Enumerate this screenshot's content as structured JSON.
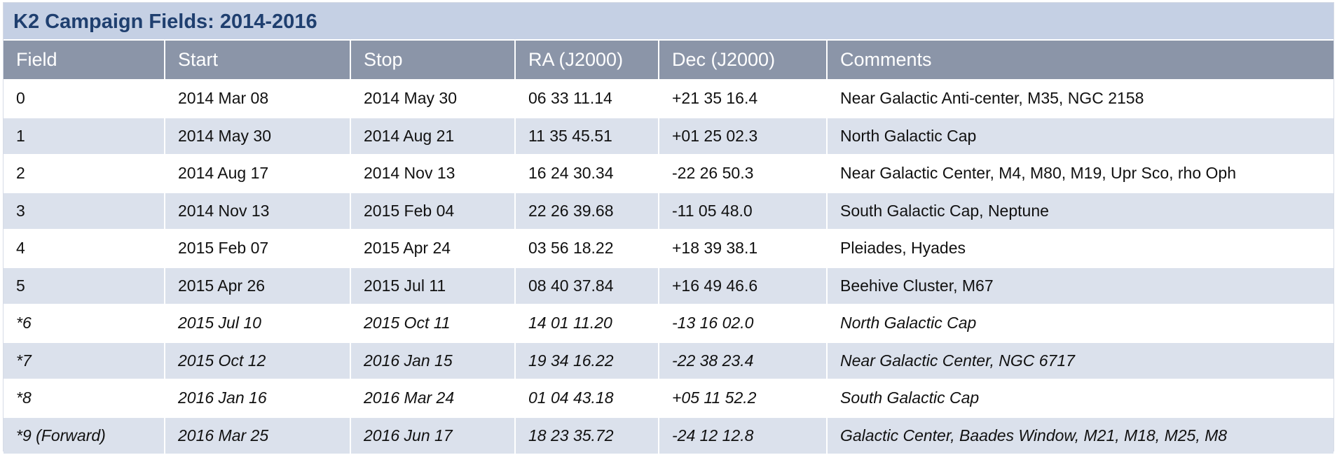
{
  "title": "K2 Campaign Fields: 2014-2016",
  "columns": [
    "Field",
    "Start",
    "Stop",
    "RA (J2000)",
    "Dec (J2000)",
    "Comments"
  ],
  "rows": [
    {
      "field": "0",
      "start": "2014 Mar 08",
      "stop": "2014 May 30",
      "ra": "06 33 11.14",
      "dec": "+21 35 16.4",
      "comments": "Near Galactic Anti-center, M35, NGC 2158",
      "projected": false
    },
    {
      "field": "1",
      "start": "2014 May 30",
      "stop": "2014 Aug 21",
      "ra": "11 35 45.51",
      "dec": "+01 25 02.3",
      "comments": "North Galactic Cap",
      "projected": false
    },
    {
      "field": "2",
      "start": "2014 Aug 17",
      "stop": "2014 Nov 13",
      "ra": "16 24 30.34",
      "dec": "-22 26 50.3",
      "comments": "Near Galactic Center, M4, M80, M19, Upr Sco, rho Oph",
      "projected": false
    },
    {
      "field": "3",
      "start": "2014 Nov 13",
      "stop": "2015 Feb 04",
      "ra": "22 26 39.68",
      "dec": "-11 05 48.0",
      "comments": "South Galactic Cap, Neptune",
      "projected": false
    },
    {
      "field": "4",
      "start": "2015 Feb 07",
      "stop": "2015 Apr 24",
      "ra": "03 56 18.22",
      "dec": "+18 39 38.1",
      "comments": "Pleiades, Hyades",
      "projected": false
    },
    {
      "field": "5",
      "start": "2015 Apr 26",
      "stop": "2015 Jul 11",
      "ra": "08 40 37.84",
      "dec": "+16 49 46.6",
      "comments": "Beehive Cluster, M67",
      "projected": false
    },
    {
      "field": "*6",
      "start": "2015 Jul 10",
      "stop": "2015 Oct 11",
      "ra": "14 01 11.20",
      "dec": "-13 16 02.0",
      "comments": "North Galactic Cap",
      "projected": true
    },
    {
      "field": "*7",
      "start": "2015 Oct 12",
      "stop": "2016 Jan 15",
      "ra": "19 34 16.22",
      "dec": "-22 38 23.4",
      "comments": "Near Galactic Center, NGC 6717",
      "projected": true
    },
    {
      "field": "*8",
      "start": "2016 Jan 16",
      "stop": "2016 Mar 24",
      "ra": "01 04 43.18",
      "dec": "+05 11 52.2",
      "comments": "South Galactic Cap",
      "projected": true
    },
    {
      "field": "*9 (Forward)",
      "start": "2016 Mar 25",
      "stop": "2016 Jun 17",
      "ra": "18 23 35.72",
      "dec": "-24 12 12.8",
      "comments": "Galactic Center, Baades Window, M21, M18, M25, M8",
      "projected": true
    }
  ],
  "colors": {
    "title_background": "#c5d0e4",
    "title_text": "#1f3f6f",
    "header_background": "#8b95a8",
    "header_text": "#ffffff",
    "row_odd": "#ffffff",
    "row_even": "#dbe1ec"
  }
}
